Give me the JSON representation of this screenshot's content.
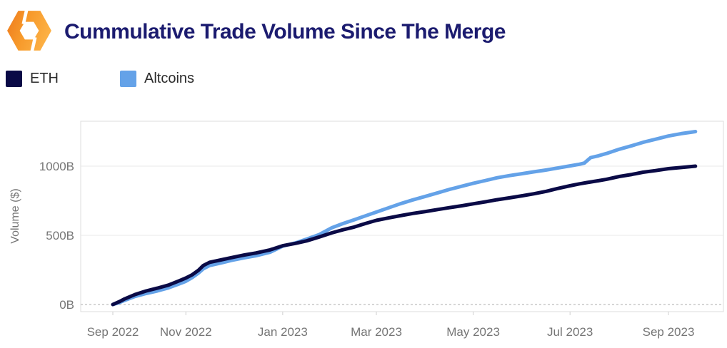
{
  "title": "Cummulative Trade Volume Since The Merge",
  "logo": {
    "name": "orange-hexagon-logo",
    "color_left": "#ee7a1d",
    "color_right": "#fcb044"
  },
  "legend": [
    {
      "label": "ETH",
      "color": "#0a0a46"
    },
    {
      "label": "Altcoins",
      "color": "#64a2e8"
    }
  ],
  "chart_data": {
    "type": "line",
    "title": "Cummulative Trade Volume Since The Merge",
    "xlabel": "",
    "ylabel": "Volume ($)",
    "x_unit": "days since The Merge (2022-09-15)",
    "ylim": [
      0,
      1325
    ],
    "grid": true,
    "legend_position": "top-left",
    "zero_line_style": "dashed",
    "y_ticks": [
      {
        "value": 0,
        "label": "0B"
      },
      {
        "value": 500,
        "label": "500B"
      },
      {
        "value": 1000,
        "label": "1000B"
      }
    ],
    "x_ticks": [
      {
        "day": 0,
        "label": "Sep 2022"
      },
      {
        "day": 46,
        "label": "Nov 2022"
      },
      {
        "day": 107,
        "label": "Jan 2023"
      },
      {
        "day": 166,
        "label": "Mar 2023"
      },
      {
        "day": 227,
        "label": "May 2023"
      },
      {
        "day": 288,
        "label": "Jul 2023"
      },
      {
        "day": 350,
        "label": "Sep 2023"
      }
    ],
    "series": [
      {
        "name": "Altcoins",
        "color": "#64a2e8",
        "unit": "billion USD",
        "points": [
          [
            0,
            0
          ],
          [
            4,
            14
          ],
          [
            7,
            28
          ],
          [
            14,
            58
          ],
          [
            21,
            80
          ],
          [
            28,
            98
          ],
          [
            35,
            120
          ],
          [
            42,
            150
          ],
          [
            46,
            168
          ],
          [
            50,
            195
          ],
          [
            54,
            228
          ],
          [
            57,
            258
          ],
          [
            61,
            282
          ],
          [
            68,
            300
          ],
          [
            76,
            322
          ],
          [
            83,
            338
          ],
          [
            90,
            352
          ],
          [
            99,
            378
          ],
          [
            107,
            422
          ],
          [
            115,
            445
          ],
          [
            122,
            472
          ],
          [
            130,
            505
          ],
          [
            138,
            555
          ],
          [
            145,
            585
          ],
          [
            152,
            612
          ],
          [
            159,
            640
          ],
          [
            166,
            668
          ],
          [
            174,
            700
          ],
          [
            181,
            728
          ],
          [
            189,
            756
          ],
          [
            197,
            782
          ],
          [
            205,
            808
          ],
          [
            212,
            832
          ],
          [
            220,
            855
          ],
          [
            227,
            876
          ],
          [
            235,
            897
          ],
          [
            242,
            916
          ],
          [
            250,
            932
          ],
          [
            258,
            946
          ],
          [
            265,
            959
          ],
          [
            273,
            972
          ],
          [
            280,
            986
          ],
          [
            288,
            1002
          ],
          [
            294,
            1014
          ],
          [
            297,
            1022
          ],
          [
            301,
            1062
          ],
          [
            306,
            1075
          ],
          [
            311,
            1092
          ],
          [
            319,
            1122
          ],
          [
            327,
            1148
          ],
          [
            334,
            1172
          ],
          [
            342,
            1195
          ],
          [
            350,
            1218
          ],
          [
            358,
            1235
          ],
          [
            364,
            1245
          ],
          [
            367,
            1250
          ]
        ]
      },
      {
        "name": "ETH",
        "color": "#0a0a46",
        "unit": "billion USD",
        "points": [
          [
            0,
            0
          ],
          [
            4,
            20
          ],
          [
            7,
            38
          ],
          [
            14,
            72
          ],
          [
            21,
            98
          ],
          [
            28,
            118
          ],
          [
            35,
            140
          ],
          [
            42,
            172
          ],
          [
            46,
            192
          ],
          [
            50,
            215
          ],
          [
            54,
            248
          ],
          [
            57,
            282
          ],
          [
            61,
            305
          ],
          [
            68,
            322
          ],
          [
            76,
            342
          ],
          [
            83,
            358
          ],
          [
            90,
            372
          ],
          [
            99,
            395
          ],
          [
            107,
            425
          ],
          [
            115,
            442
          ],
          [
            122,
            460
          ],
          [
            130,
            488
          ],
          [
            138,
            518
          ],
          [
            145,
            540
          ],
          [
            152,
            560
          ],
          [
            159,
            585
          ],
          [
            166,
            608
          ],
          [
            174,
            627
          ],
          [
            181,
            642
          ],
          [
            189,
            658
          ],
          [
            197,
            672
          ],
          [
            205,
            687
          ],
          [
            212,
            700
          ],
          [
            220,
            714
          ],
          [
            227,
            728
          ],
          [
            235,
            743
          ],
          [
            242,
            757
          ],
          [
            250,
            771
          ],
          [
            258,
            786
          ],
          [
            265,
            800
          ],
          [
            273,
            818
          ],
          [
            280,
            838
          ],
          [
            288,
            858
          ],
          [
            294,
            872
          ],
          [
            299,
            882
          ],
          [
            306,
            895
          ],
          [
            311,
            905
          ],
          [
            319,
            925
          ],
          [
            327,
            940
          ],
          [
            334,
            956
          ],
          [
            342,
            968
          ],
          [
            350,
            982
          ],
          [
            358,
            990
          ],
          [
            364,
            997
          ],
          [
            367,
            1000
          ]
        ]
      }
    ]
  }
}
